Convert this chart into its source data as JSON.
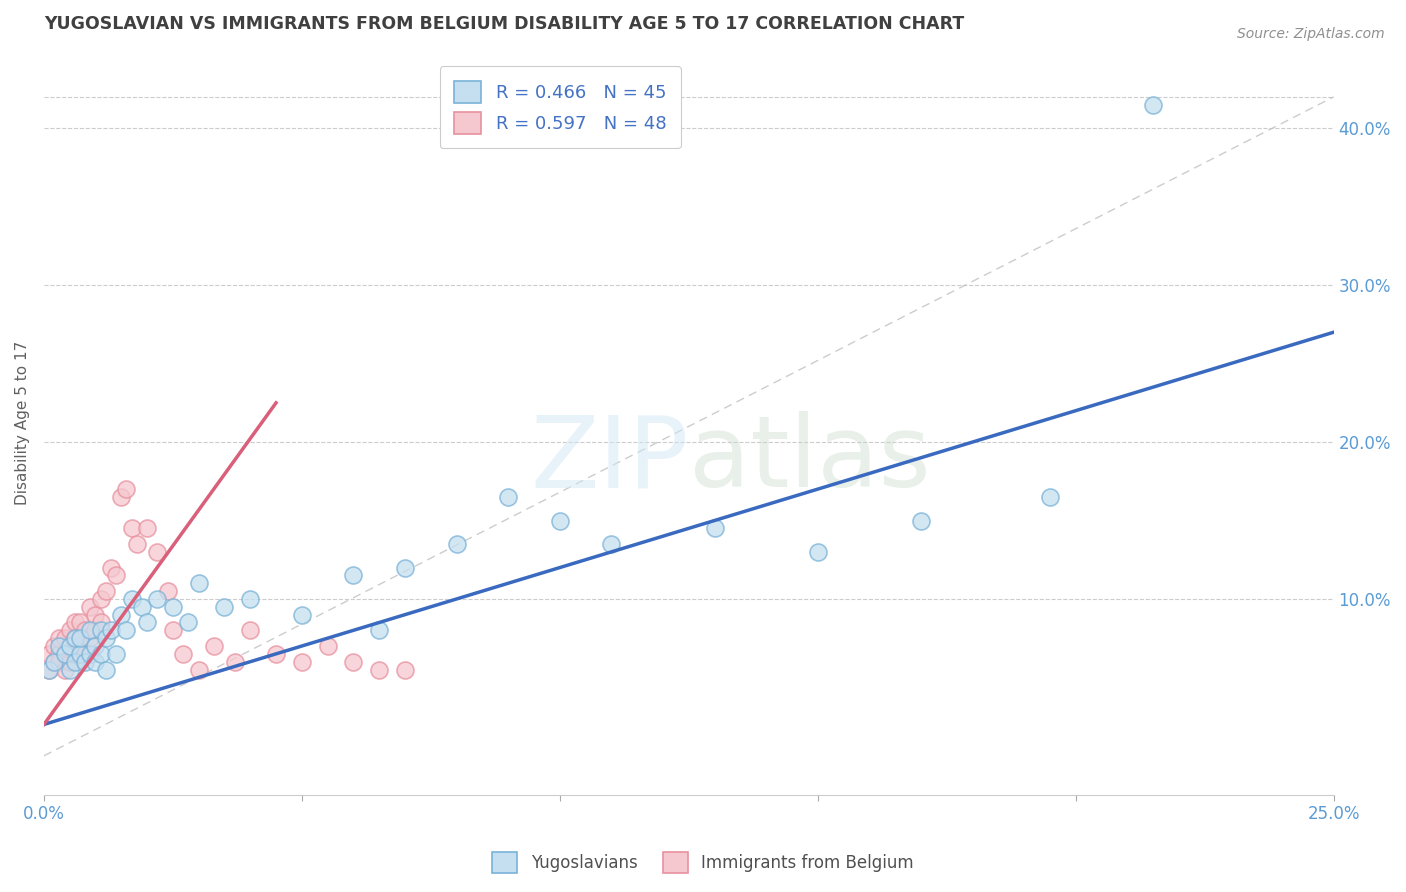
{
  "title": "YUGOSLAVIAN VS IMMIGRANTS FROM BELGIUM DISABILITY AGE 5 TO 17 CORRELATION CHART",
  "source": "Source: ZipAtlas.com",
  "ylabel": "Disability Age 5 to 17",
  "y_ticks_right": [
    0.1,
    0.2,
    0.3,
    0.4
  ],
  "y_tick_labels_right": [
    "10.0%",
    "20.0%",
    "30.0%",
    "40.0%"
  ],
  "xlim": [
    0.0,
    0.25
  ],
  "ylim": [
    -0.025,
    0.45
  ],
  "blue_R": 0.466,
  "blue_N": 45,
  "pink_R": 0.597,
  "pink_N": 48,
  "blue_color": "#7ab3d8",
  "blue_fill": "#c5dff0",
  "pink_color": "#e8919f",
  "pink_fill": "#f5c8d0",
  "blue_line_color": "#3a6abf",
  "pink_line_color": "#d95f7a",
  "ref_line_color": "#c0c0c0",
  "legend_label_blue": "Yugoslavians",
  "legend_label_pink": "Immigrants from Belgium",
  "background_color": "#ffffff",
  "title_color": "#404040",
  "source_color": "#909090",
  "blue_scatter_x": [
    0.001,
    0.002,
    0.003,
    0.004,
    0.005,
    0.005,
    0.006,
    0.006,
    0.007,
    0.007,
    0.008,
    0.009,
    0.009,
    0.01,
    0.01,
    0.011,
    0.011,
    0.012,
    0.012,
    0.013,
    0.014,
    0.015,
    0.016,
    0.017,
    0.019,
    0.02,
    0.022,
    0.025,
    0.028,
    0.03,
    0.035,
    0.04,
    0.05,
    0.06,
    0.065,
    0.07,
    0.08,
    0.09,
    0.1,
    0.11,
    0.13,
    0.15,
    0.17,
    0.195,
    0.215
  ],
  "blue_scatter_y": [
    0.055,
    0.06,
    0.07,
    0.065,
    0.055,
    0.07,
    0.06,
    0.075,
    0.065,
    0.075,
    0.06,
    0.065,
    0.08,
    0.06,
    0.07,
    0.065,
    0.08,
    0.055,
    0.075,
    0.08,
    0.065,
    0.09,
    0.08,
    0.1,
    0.095,
    0.085,
    0.1,
    0.095,
    0.085,
    0.11,
    0.095,
    0.1,
    0.09,
    0.115,
    0.08,
    0.12,
    0.135,
    0.165,
    0.15,
    0.135,
    0.145,
    0.13,
    0.15,
    0.165,
    0.415
  ],
  "pink_scatter_x": [
    0.001,
    0.001,
    0.002,
    0.002,
    0.003,
    0.003,
    0.003,
    0.004,
    0.004,
    0.004,
    0.005,
    0.005,
    0.005,
    0.006,
    0.006,
    0.006,
    0.007,
    0.007,
    0.008,
    0.008,
    0.009,
    0.009,
    0.01,
    0.01,
    0.011,
    0.011,
    0.012,
    0.013,
    0.014,
    0.015,
    0.016,
    0.017,
    0.018,
    0.02,
    0.022,
    0.024,
    0.025,
    0.027,
    0.03,
    0.033,
    0.037,
    0.04,
    0.045,
    0.05,
    0.055,
    0.06,
    0.065,
    0.07
  ],
  "pink_scatter_y": [
    0.055,
    0.065,
    0.06,
    0.07,
    0.065,
    0.06,
    0.075,
    0.055,
    0.065,
    0.075,
    0.06,
    0.07,
    0.08,
    0.065,
    0.075,
    0.085,
    0.07,
    0.085,
    0.065,
    0.08,
    0.075,
    0.095,
    0.08,
    0.09,
    0.085,
    0.1,
    0.105,
    0.12,
    0.115,
    0.165,
    0.17,
    0.145,
    0.135,
    0.145,
    0.13,
    0.105,
    0.08,
    0.065,
    0.055,
    0.07,
    0.06,
    0.08,
    0.065,
    0.06,
    0.07,
    0.06,
    0.055,
    0.055
  ],
  "blue_line_x": [
    0.0,
    0.25
  ],
  "blue_line_y": [
    0.02,
    0.27
  ],
  "pink_line_x": [
    0.0,
    0.045
  ],
  "pink_line_y": [
    0.02,
    0.225
  ]
}
